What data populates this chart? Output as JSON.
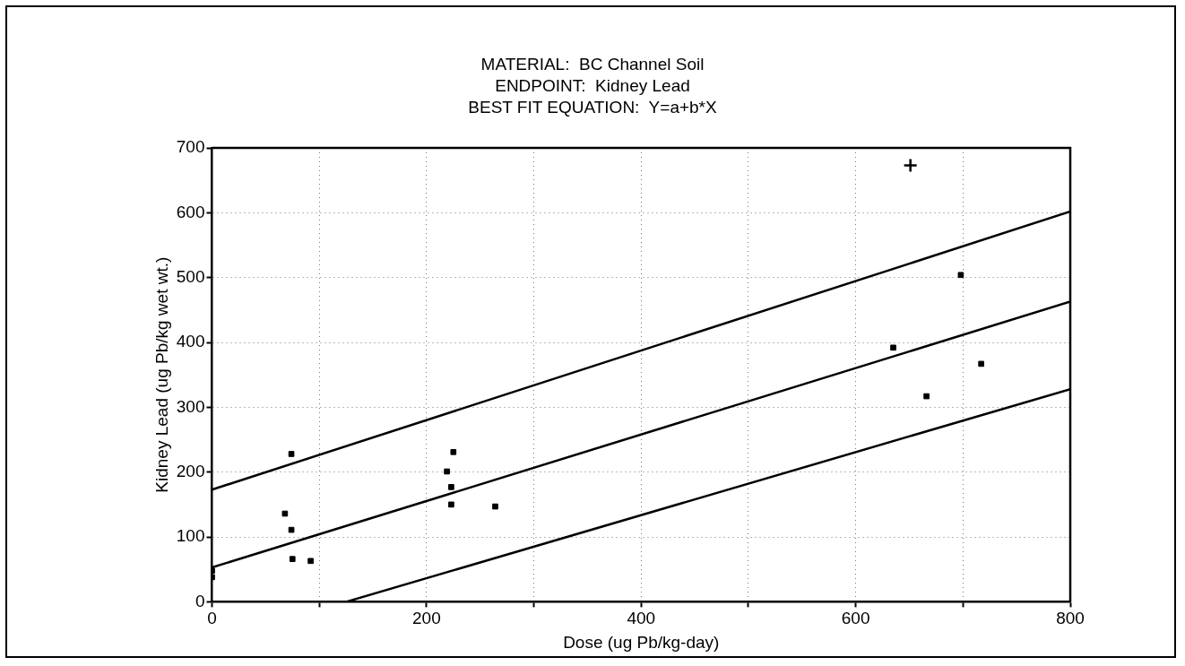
{
  "chart_data": {
    "type": "scatter",
    "title": "MATERIAL:  BC Channel Soil",
    "subtitle": "ENDPOINT:  Kidney Lead",
    "annotations": [
      "BEST FIT EQUATION:  Y=a+b*X"
    ],
    "xlabel": "Dose (ug Pb/kg-day)",
    "ylabel": "Kidney Lead (ug Pb/kg wet wt.)",
    "xlim": [
      0,
      800
    ],
    "ylim": [
      0,
      700
    ],
    "xticks": [
      0,
      {
        "value": 100,
        "label": null
      },
      200,
      {
        "value": 300,
        "label": null
      },
      400,
      {
        "value": 500,
        "label": null
      },
      600,
      {
        "value": 700,
        "label": null
      },
      800
    ],
    "yticks": [
      0,
      100,
      200,
      300,
      400,
      500,
      600,
      700
    ],
    "grid": true,
    "marker": "square",
    "legend": false,
    "series": [
      {
        "type": "scatter",
        "color": "#000000",
        "x": [
          0,
          0,
          74,
          68,
          74,
          75,
          92,
          225,
          219,
          223,
          223,
          264,
          635,
          666,
          698,
          717
        ],
        "values": [
          48,
          38,
          228,
          136,
          111,
          66,
          63,
          231,
          201,
          177,
          150,
          147,
          392,
          317,
          504,
          367
        ]
      },
      {
        "type": "scatter",
        "color": "#000000",
        "marker": "cross",
        "x": [
          651
        ],
        "values": [
          673
        ]
      },
      {
        "type": "line",
        "color": "#000000",
        "marker": "none",
        "x": [
          0,
          800
        ],
        "values": [
          53,
          463
        ]
      },
      {
        "type": "line",
        "color": "#000000",
        "marker": "none",
        "x": [
          0,
          800
        ],
        "values": [
          173,
          602
        ]
      },
      {
        "type": "line",
        "color": "#000000",
        "marker": "none",
        "x": [
          125,
          800
        ],
        "values": [
          0,
          328
        ]
      }
    ]
  }
}
